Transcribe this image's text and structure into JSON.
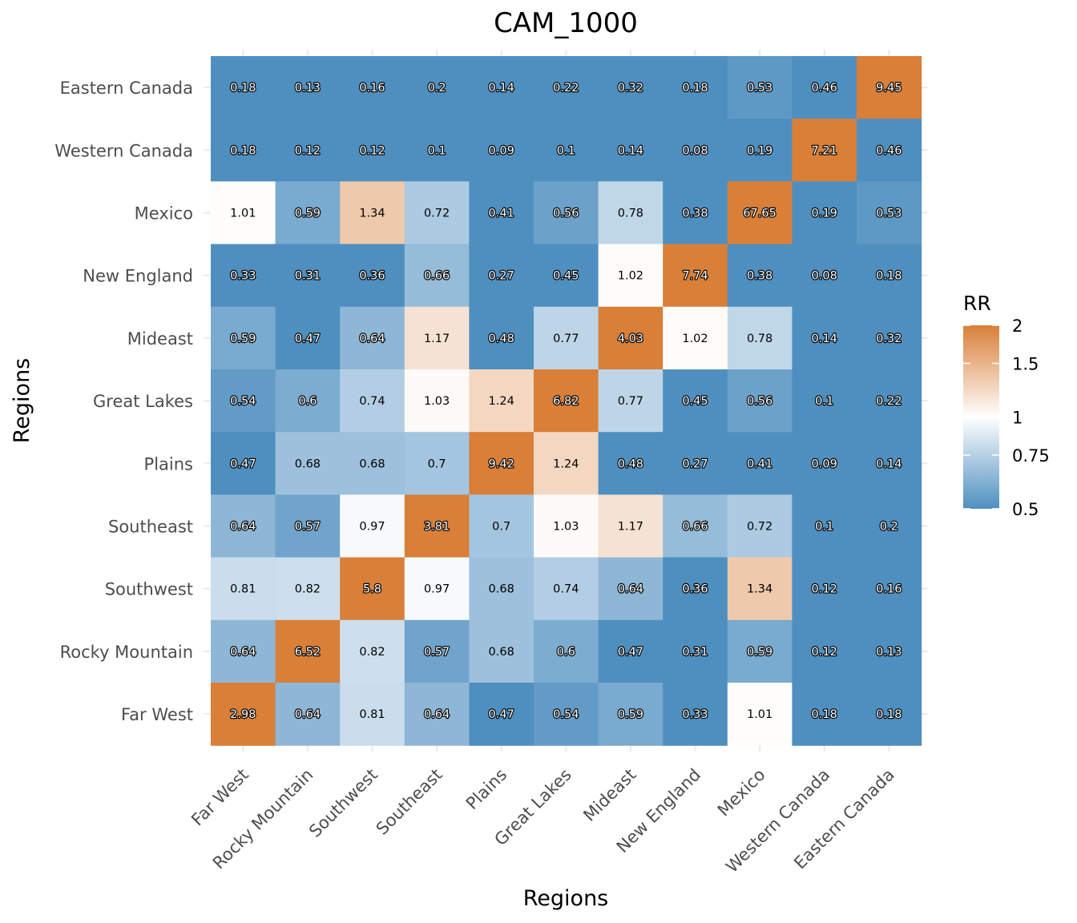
{
  "chart_data": {
    "type": "heatmap",
    "title": "CAM_1000",
    "xlabel": "Regions",
    "ylabel": "Regions",
    "x_categories": [
      "Far West",
      "Rocky Mountain",
      "Southwest",
      "Southeast",
      "Plains",
      "Great Lakes",
      "Mideast",
      "New England",
      "Mexico",
      "Western Canada",
      "Eastern Canada"
    ],
    "y_categories_top_to_bottom": [
      "Eastern Canada",
      "Western Canada",
      "Mexico",
      "New England",
      "Mideast",
      "Great Lakes",
      "Plains",
      "Southeast",
      "Southwest",
      "Rocky Mountain",
      "Far West"
    ],
    "values": [
      [
        0.18,
        0.13,
        0.16,
        0.2,
        0.14,
        0.22,
        0.32,
        0.18,
        0.53,
        0.46,
        9.45
      ],
      [
        0.18,
        0.12,
        0.12,
        0.1,
        0.09,
        0.1,
        0.14,
        0.08,
        0.19,
        7.21,
        0.46
      ],
      [
        1.01,
        0.59,
        1.34,
        0.72,
        0.41,
        0.56,
        0.78,
        0.38,
        67.65,
        0.19,
        0.53
      ],
      [
        0.33,
        0.31,
        0.36,
        0.66,
        0.27,
        0.45,
        1.02,
        7.74,
        0.38,
        0.08,
        0.18
      ],
      [
        0.59,
        0.47,
        0.64,
        1.17,
        0.48,
        0.77,
        4.03,
        1.02,
        0.78,
        0.14,
        0.32
      ],
      [
        0.54,
        0.6,
        0.74,
        1.03,
        1.24,
        6.82,
        0.77,
        0.45,
        0.56,
        0.1,
        0.22
      ],
      [
        0.47,
        0.68,
        0.68,
        0.7,
        9.42,
        1.24,
        0.48,
        0.27,
        0.41,
        0.09,
        0.14
      ],
      [
        0.64,
        0.57,
        0.97,
        3.81,
        0.7,
        1.03,
        1.17,
        0.66,
        0.72,
        0.1,
        0.2
      ],
      [
        0.81,
        0.82,
        5.8,
        0.97,
        0.68,
        0.74,
        0.64,
        0.36,
        1.34,
        0.12,
        0.16
      ],
      [
        0.64,
        6.52,
        0.82,
        0.57,
        0.68,
        0.6,
        0.47,
        0.31,
        0.59,
        0.12,
        0.13
      ],
      [
        2.98,
        0.64,
        0.81,
        0.64,
        0.47,
        0.54,
        0.59,
        0.33,
        1.01,
        0.18,
        0.18
      ]
    ],
    "legend": {
      "title": "RR",
      "ticks": [
        "0.5",
        "0.75",
        "1",
        "1.5",
        "2"
      ],
      "range": [
        0.5,
        2
      ],
      "scale": "log",
      "placement": "right"
    },
    "colors": {
      "low": "#4f8fc0",
      "mid": "#ffffff",
      "high": "#d97f38"
    },
    "grid": true
  }
}
